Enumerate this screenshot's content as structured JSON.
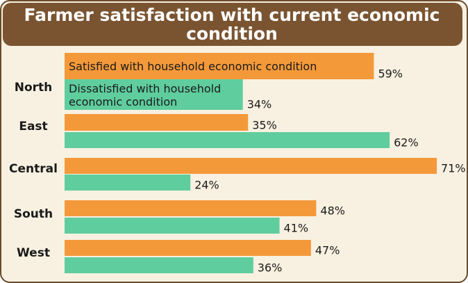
{
  "chart_data": {
    "type": "bar",
    "orientation": "horizontal",
    "title": "Farmer satisfaction with current economic condition",
    "categories": [
      "North",
      "East",
      "Central",
      "South",
      "West"
    ],
    "series": [
      {
        "name": "Satisfied with household economic condition",
        "color": "#f4993a",
        "values": [
          59,
          35,
          71,
          48,
          47
        ],
        "value_labels": [
          "59%",
          "35%",
          "71%",
          "48%",
          "47%"
        ]
      },
      {
        "name": "Dissatisfied with household economic condition",
        "color": "#5fcd9e",
        "values": [
          34,
          62,
          24,
          41,
          36
        ],
        "value_labels": [
          "34%",
          "62%",
          "24%",
          "41%",
          "36%"
        ]
      }
    ]
  }
}
